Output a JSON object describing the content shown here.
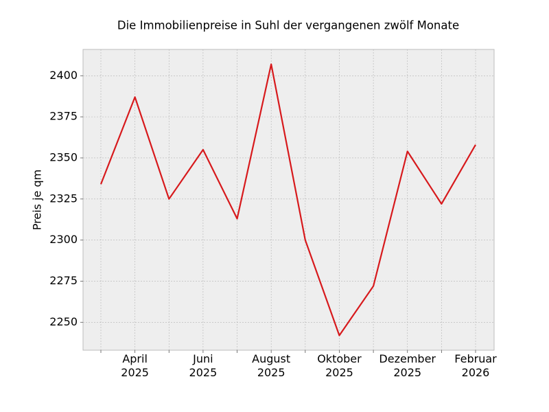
{
  "chart_data": {
    "type": "line",
    "title": "Die Immobilienpreise in Suhl der vergangenen zwölf Monate",
    "y_label": "Preis je qm",
    "categories": [
      null,
      "April\n2025",
      null,
      "Juni\n2025",
      null,
      "August\n2025",
      null,
      "Oktober\n2025",
      null,
      "Dezember\n2025",
      null,
      "Februar\n2026"
    ],
    "series": [
      {
        "name": "Preis je qm",
        "color": "#d7191c",
        "values": [
          2334,
          2387,
          2325,
          2355,
          2313,
          2407,
          2300,
          2242,
          2272,
          2354,
          2322,
          2358
        ]
      }
    ],
    "ylim": [
      2233,
      2416
    ],
    "yticks": [
      2250,
      2275,
      2300,
      2325,
      2350,
      2375,
      2400
    ],
    "grid": true
  }
}
